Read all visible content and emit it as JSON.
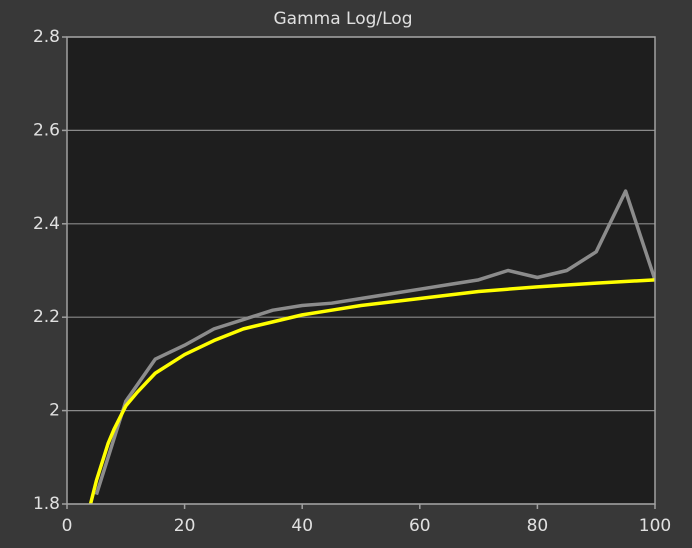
{
  "chart_data": {
    "type": "line",
    "title": "Gamma Log/Log",
    "series": [
      {
        "name": null,
        "color": "#8c8c8c",
        "x": [
          5,
          10,
          15,
          20,
          25,
          30,
          35,
          40,
          45,
          50,
          55,
          60,
          65,
          70,
          75,
          80,
          85,
          90,
          95,
          100
        ],
        "values": [
          1.82,
          2.02,
          2.11,
          2.14,
          2.175,
          2.195,
          2.215,
          2.225,
          2.23,
          2.24,
          2.25,
          2.26,
          2.27,
          2.28,
          2.3,
          2.285,
          2.3,
          2.34,
          2.47,
          2.28
        ]
      },
      {
        "name": null,
        "color": "#ffff00",
        "x": [
          4,
          5,
          6,
          7,
          8,
          10,
          12,
          15,
          20,
          25,
          30,
          35,
          40,
          45,
          50,
          60,
          70,
          80,
          90,
          100
        ],
        "values": [
          1.8,
          1.85,
          1.89,
          1.93,
          1.96,
          2.01,
          2.04,
          2.08,
          2.12,
          2.15,
          2.175,
          2.19,
          2.205,
          2.215,
          2.225,
          2.24,
          2.255,
          2.265,
          2.273,
          2.28
        ]
      }
    ],
    "xlim": [
      0,
      100
    ],
    "xticks": [
      0,
      20,
      40,
      60,
      80,
      100
    ],
    "ylim": [
      1.8,
      2.8
    ],
    "yticks": [
      1.8,
      2,
      2.2,
      2.4,
      2.6,
      2.8
    ],
    "grid": true
  }
}
